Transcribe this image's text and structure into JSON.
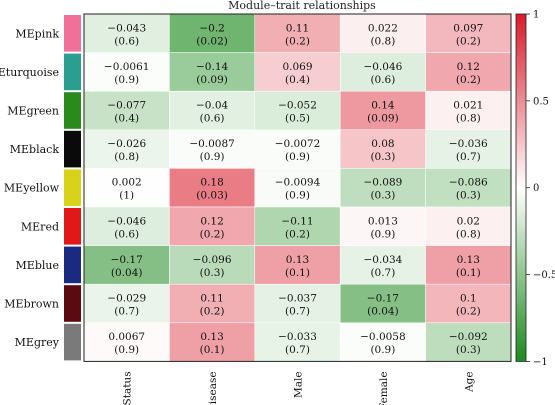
{
  "chart_data": {
    "type": "heatmap",
    "title": "Module–trait relationships",
    "rows": [
      "MEpink",
      "MEturquoise",
      "MEgreen",
      "MEblack",
      "MEyellow",
      "MEred",
      "MEblue",
      "MEbrown",
      "MEgrey"
    ],
    "row_colors": [
      "#f0709a",
      "#2a9f91",
      "#2a8a1c",
      "#0a0a0a",
      "#d8d21a",
      "#e01818",
      "#1a2a80",
      "#5a0a10",
      "#7a7a7a"
    ],
    "columns": [
      "Status",
      "Disease",
      "Male",
      "Female",
      "Age"
    ],
    "values": [
      [
        -0.043,
        -0.2,
        0.11,
        0.022,
        0.097
      ],
      [
        -0.0061,
        -0.14,
        0.069,
        -0.046,
        0.12
      ],
      [
        -0.077,
        -0.04,
        -0.052,
        0.14,
        0.021
      ],
      [
        -0.026,
        -0.0087,
        -0.0072,
        0.08,
        -0.036
      ],
      [
        0.002,
        0.18,
        -0.0094,
        -0.089,
        -0.086
      ],
      [
        -0.046,
        0.12,
        -0.11,
        0.013,
        0.02
      ],
      [
        -0.17,
        -0.096,
        0.13,
        -0.034,
        0.13
      ],
      [
        -0.029,
        0.11,
        -0.037,
        -0.17,
        0.1
      ],
      [
        0.0067,
        0.13,
        -0.033,
        -0.0058,
        -0.092
      ]
    ],
    "labels": [
      [
        "−0.043",
        "−0.2",
        "0.11",
        "0.022",
        "0.097"
      ],
      [
        "−0.0061",
        "−0.14",
        "0.069",
        "−0.046",
        "0.12"
      ],
      [
        "−0.077",
        "−0.04",
        "−0.052",
        "0.14",
        "0.021"
      ],
      [
        "−0.026",
        "−0.0087",
        "−0.0072",
        "0.08",
        "−0.036"
      ],
      [
        "0.002",
        "0.18",
        "−0.0094",
        "−0.089",
        "−0.086"
      ],
      [
        "−0.046",
        "0.12",
        "−0.11",
        "0.013",
        "0.02"
      ],
      [
        "−0.17",
        "−0.096",
        "0.13",
        "−0.034",
        "0.13"
      ],
      [
        "−0.029",
        "0.11",
        "−0.037",
        "−0.17",
        "0.1"
      ],
      [
        "0.0067",
        "0.13",
        "−0.033",
        "−0.0058",
        "−0.092"
      ]
    ],
    "pvalues": [
      [
        "(0.6)",
        "(0.02)",
        "(0.2)",
        "(0.8)",
        "(0.2)"
      ],
      [
        "(0.9)",
        "(0.09)",
        "(0.4)",
        "(0.6)",
        "(0.2)"
      ],
      [
        "(0.4)",
        "(0.6)",
        "(0.5)",
        "(0.09)",
        "(0.8)"
      ],
      [
        "(0.8)",
        "(0.9)",
        "(0.9)",
        "(0.3)",
        "(0.7)"
      ],
      [
        "(1)",
        "(0.03)",
        "(0.9)",
        "(0.3)",
        "(0.3)"
      ],
      [
        "(0.6)",
        "(0.2)",
        "(0.2)",
        "(0.9)",
        "(0.8)"
      ],
      [
        "(0.04)",
        "(0.3)",
        "(0.1)",
        "(0.7)",
        "(0.1)"
      ],
      [
        "(0.7)",
        "(0.2)",
        "(0.7)",
        "(0.04)",
        "(0.2)"
      ],
      [
        "(0.9)",
        "(0.1)",
        "(0.7)",
        "(0.9)",
        "(0.3)"
      ]
    ],
    "colorbar": {
      "range": [
        -1,
        1
      ],
      "ticks": [
        1,
        0.5,
        0,
        -0.5,
        -1
      ],
      "tick_labels": [
        "1",
        "0.5",
        "0",
        "−0.5",
        "−1"
      ],
      "low_color": "#1e8a1e",
      "mid_color": "#ffffff",
      "high_color": "#d81b2a",
      "placement": "right"
    }
  }
}
